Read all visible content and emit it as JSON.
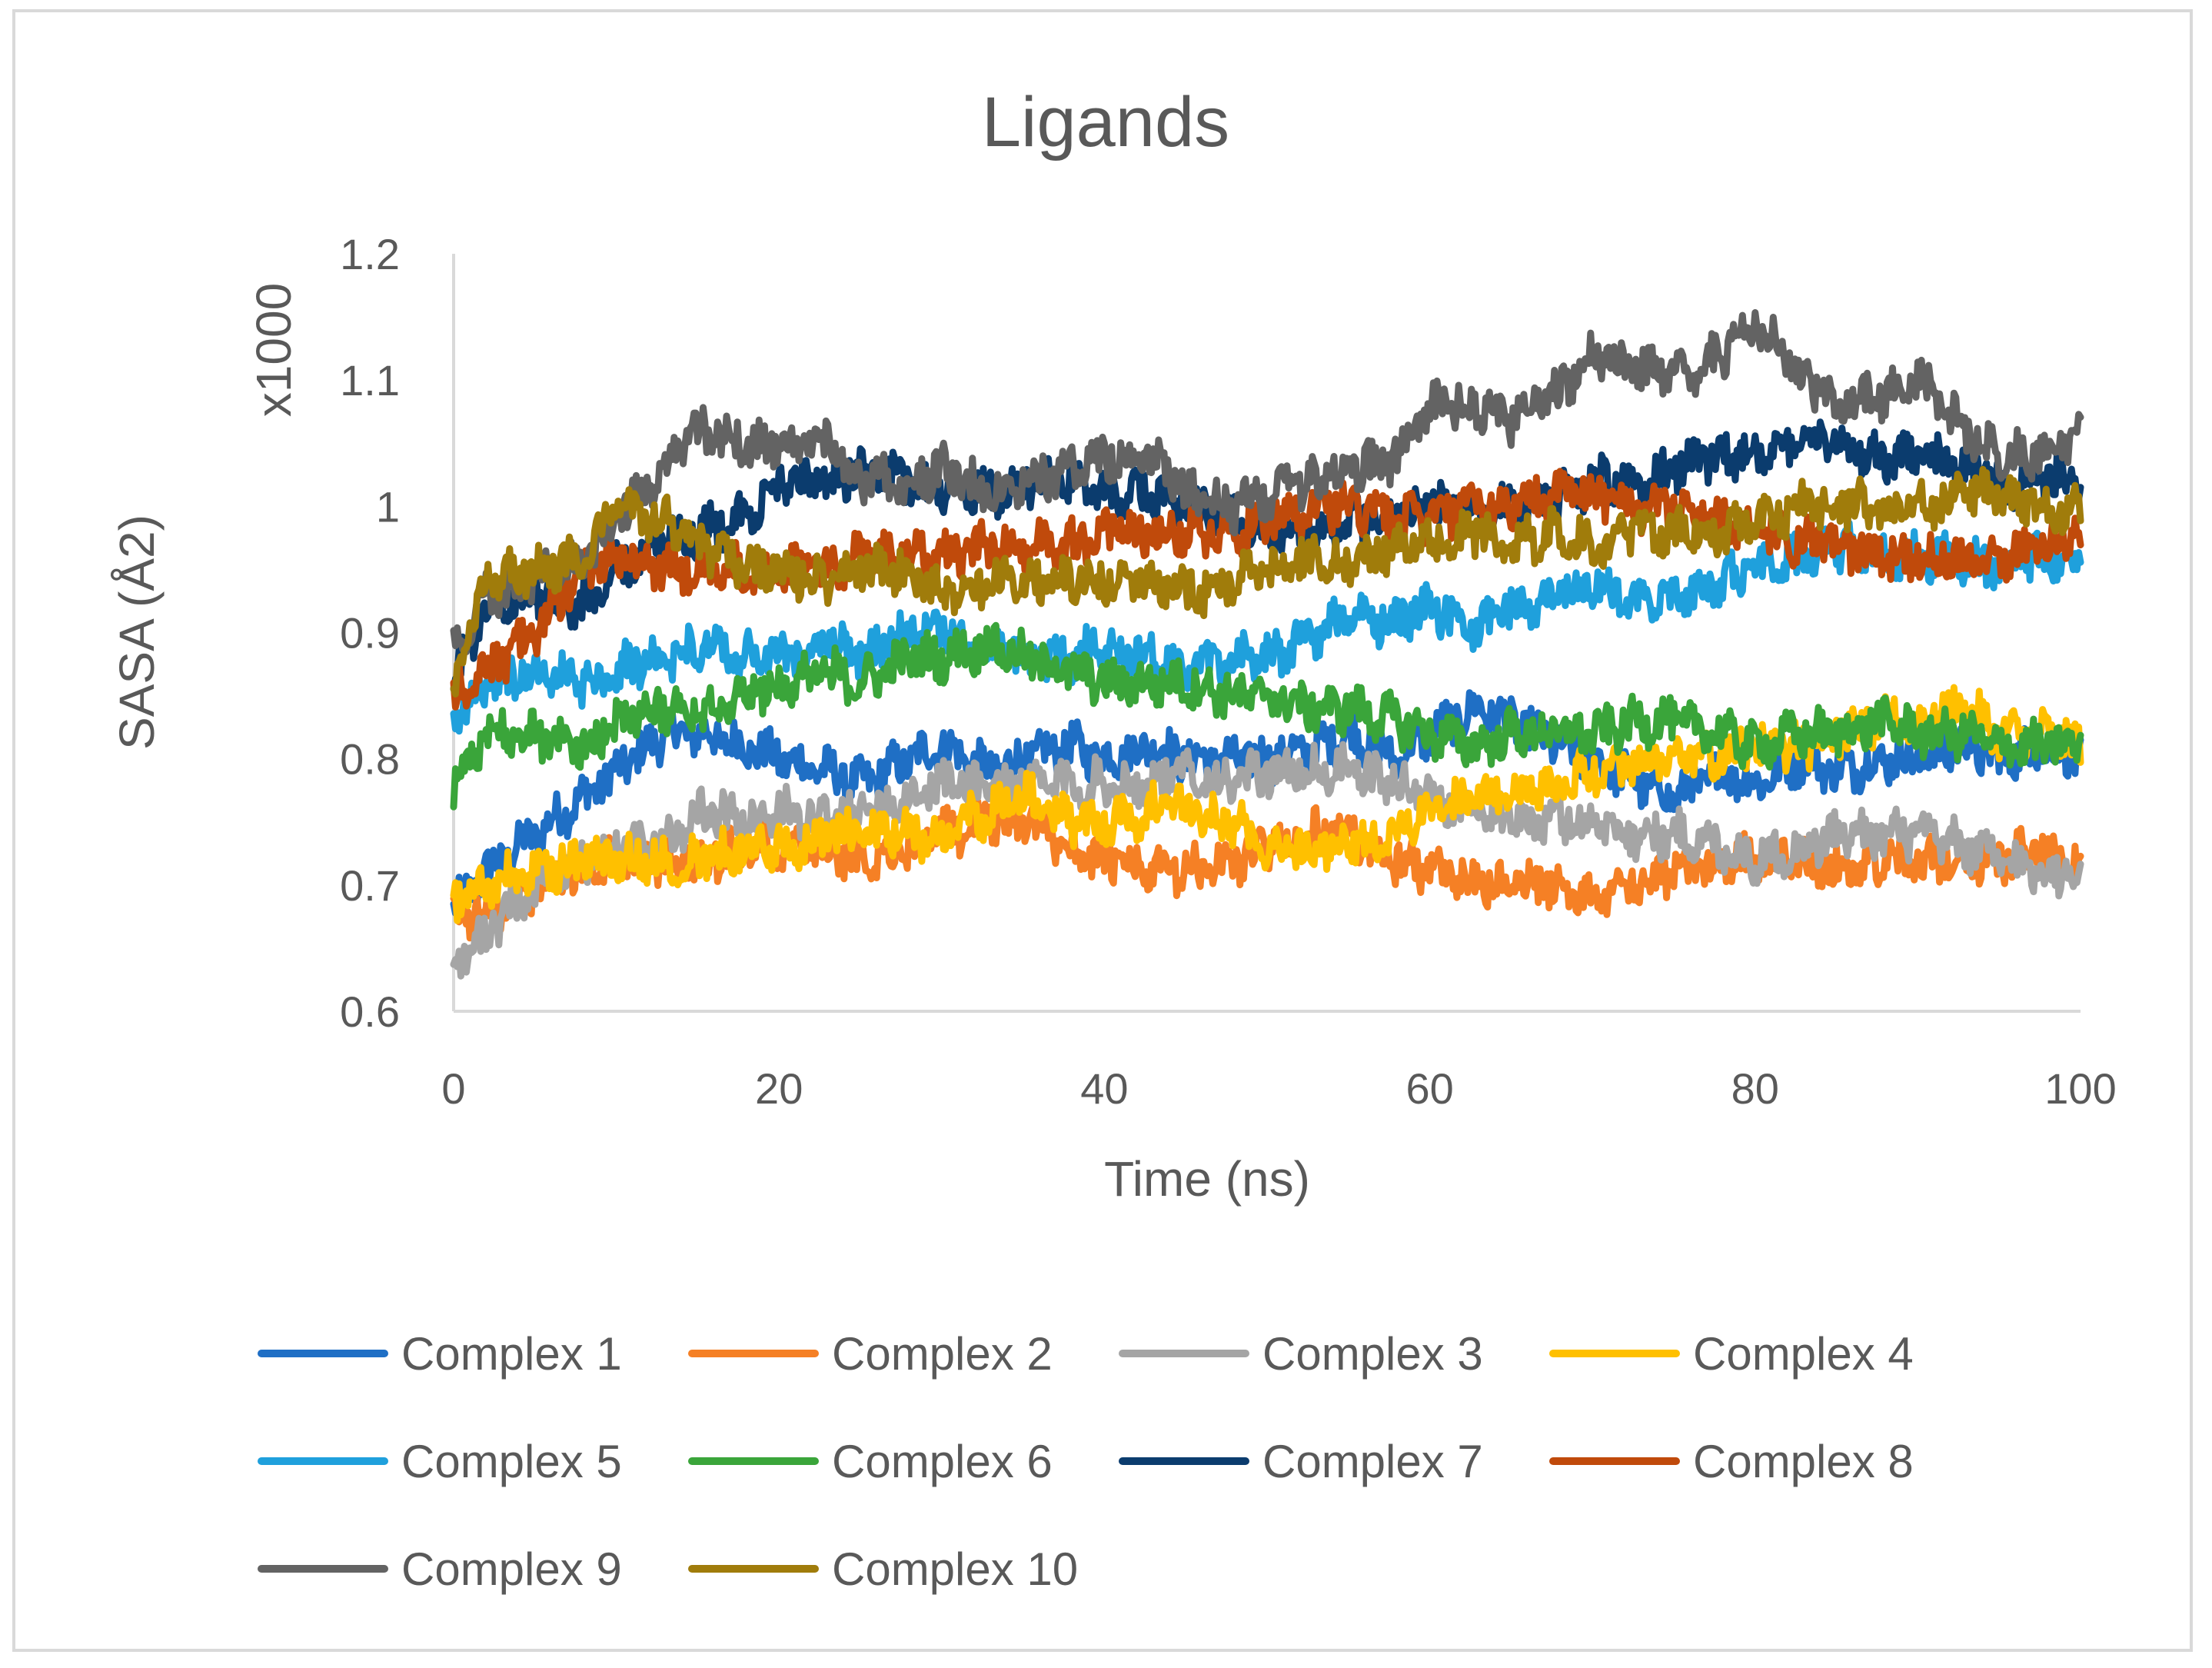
{
  "chart_data": {
    "type": "line",
    "title": "Ligands",
    "xlabel": "Time (ns)",
    "ylabel": "SASA  (Å2)",
    "y_multiplier_label": "x1000",
    "xlim": [
      0,
      100
    ],
    "ylim": [
      0.6,
      1.2
    ],
    "x_ticks": [
      "0",
      "20",
      "40",
      "60",
      "80",
      "100"
    ],
    "y_ticks": [
      "0.6",
      "0.7",
      "0.8",
      "0.9",
      "1",
      "1.1",
      "1.2"
    ],
    "grid": false,
    "legend_position": "bottom",
    "x": [
      0,
      2,
      5,
      8,
      10,
      13,
      15,
      18,
      20,
      23,
      25,
      28,
      30,
      33,
      35,
      38,
      40,
      43,
      45,
      48,
      50,
      53,
      55,
      58,
      60,
      63,
      65,
      68,
      70,
      73,
      75,
      78,
      80,
      83,
      85,
      88,
      90,
      93,
      95,
      98,
      100
    ],
    "series": [
      {
        "name": "Complex 1",
        "color": "#1f6fc5",
        "values": [
          0.68,
          0.71,
          0.74,
          0.77,
          0.79,
          0.82,
          0.82,
          0.81,
          0.8,
          0.79,
          0.78,
          0.8,
          0.81,
          0.79,
          0.8,
          0.81,
          0.8,
          0.81,
          0.8,
          0.8,
          0.8,
          0.81,
          0.82,
          0.8,
          0.82,
          0.84,
          0.83,
          0.81,
          0.8,
          0.78,
          0.77,
          0.79,
          0.78,
          0.8,
          0.79,
          0.8,
          0.8,
          0.81,
          0.8,
          0.81,
          0.8
        ]
      },
      {
        "name": "Complex 2",
        "color": "#f58025",
        "values": [
          0.67,
          0.68,
          0.7,
          0.71,
          0.72,
          0.72,
          0.72,
          0.73,
          0.73,
          0.73,
          0.72,
          0.73,
          0.74,
          0.75,
          0.75,
          0.73,
          0.72,
          0.71,
          0.71,
          0.72,
          0.73,
          0.74,
          0.74,
          0.72,
          0.71,
          0.7,
          0.7,
          0.7,
          0.69,
          0.7,
          0.71,
          0.72,
          0.72,
          0.72,
          0.71,
          0.72,
          0.72,
          0.72,
          0.72,
          0.73,
          0.72
        ]
      },
      {
        "name": "Complex 3",
        "color": "#a5a5a5",
        "values": [
          0.64,
          0.66,
          0.7,
          0.72,
          0.73,
          0.73,
          0.76,
          0.75,
          0.76,
          0.75,
          0.76,
          0.77,
          0.78,
          0.78,
          0.78,
          0.78,
          0.78,
          0.78,
          0.79,
          0.78,
          0.79,
          0.79,
          0.79,
          0.78,
          0.77,
          0.76,
          0.75,
          0.75,
          0.75,
          0.74,
          0.74,
          0.73,
          0.72,
          0.73,
          0.74,
          0.74,
          0.74,
          0.73,
          0.72,
          0.71,
          0.71
        ]
      },
      {
        "name": "Complex 4",
        "color": "#ffc000",
        "values": [
          0.69,
          0.7,
          0.71,
          0.72,
          0.72,
          0.72,
          0.72,
          0.73,
          0.73,
          0.74,
          0.74,
          0.74,
          0.74,
          0.76,
          0.77,
          0.75,
          0.75,
          0.76,
          0.76,
          0.75,
          0.73,
          0.73,
          0.73,
          0.74,
          0.76,
          0.77,
          0.77,
          0.78,
          0.79,
          0.8,
          0.8,
          0.8,
          0.81,
          0.81,
          0.82,
          0.83,
          0.83,
          0.84,
          0.82,
          0.82,
          0.81
        ]
      },
      {
        "name": "Complex 5",
        "color": "#1fa0dc",
        "values": [
          0.83,
          0.86,
          0.87,
          0.86,
          0.87,
          0.88,
          0.89,
          0.88,
          0.88,
          0.89,
          0.88,
          0.9,
          0.9,
          0.89,
          0.88,
          0.88,
          0.89,
          0.88,
          0.87,
          0.88,
          0.88,
          0.9,
          0.91,
          0.91,
          0.92,
          0.9,
          0.92,
          0.93,
          0.94,
          0.92,
          0.93,
          0.94,
          0.95,
          0.96,
          0.97,
          0.96,
          0.96,
          0.96,
          0.95,
          0.96,
          0.96
        ]
      },
      {
        "name": "Complex 6",
        "color": "#3aa53a",
        "values": [
          0.78,
          0.82,
          0.82,
          0.81,
          0.83,
          0.84,
          0.84,
          0.85,
          0.86,
          0.87,
          0.86,
          0.88,
          0.88,
          0.89,
          0.88,
          0.87,
          0.86,
          0.86,
          0.86,
          0.85,
          0.85,
          0.84,
          0.84,
          0.83,
          0.82,
          0.81,
          0.82,
          0.82,
          0.82,
          0.83,
          0.83,
          0.82,
          0.81,
          0.82,
          0.82,
          0.83,
          0.82,
          0.82,
          0.81,
          0.81,
          0.81
        ]
      },
      {
        "name": "Complex 7",
        "color": "#0b3c6e",
        "values": [
          0.86,
          0.92,
          0.93,
          0.92,
          0.95,
          0.97,
          0.98,
          0.99,
          1.02,
          1.02,
          1.03,
          1.02,
          1.01,
          1.01,
          1.02,
          1.02,
          1.01,
          1.01,
          1.0,
          0.99,
          0.98,
          0.98,
          0.99,
          0.99,
          1.0,
          1.0,
          1.0,
          1.01,
          1.02,
          1.02,
          1.03,
          1.04,
          1.04,
          1.05,
          1.05,
          1.04,
          1.04,
          1.03,
          1.02,
          1.02,
          1.02
        ]
      },
      {
        "name": "Complex 8",
        "color": "#c04a0b",
        "values": [
          0.85,
          0.87,
          0.9,
          0.95,
          0.96,
          0.95,
          0.95,
          0.95,
          0.95,
          0.95,
          0.96,
          0.96,
          0.96,
          0.97,
          0.97,
          0.97,
          0.98,
          0.98,
          0.98,
          0.98,
          0.99,
          1.0,
          1.0,
          0.99,
          0.99,
          1.0,
          1.0,
          1.01,
          1.01,
          1.0,
          1.0,
          0.99,
          0.98,
          0.97,
          0.97,
          0.96,
          0.96,
          0.96,
          0.96,
          0.97,
          0.98
        ]
      },
      {
        "name": "Complex 9",
        "color": "#636363",
        "values": [
          0.88,
          0.93,
          0.94,
          0.96,
          0.99,
          1.03,
          1.06,
          1.05,
          1.05,
          1.05,
          1.02,
          1.02,
          1.03,
          1.01,
          1.02,
          1.03,
          1.04,
          1.04,
          1.01,
          1.0,
          1.01,
          1.02,
          1.03,
          1.04,
          1.08,
          1.08,
          1.07,
          1.09,
          1.12,
          1.11,
          1.1,
          1.12,
          1.15,
          1.1,
          1.08,
          1.09,
          1.1,
          1.06,
          1.04,
          1.04,
          1.06
        ]
      },
      {
        "name": "Complex 10",
        "color": "#a07c0b",
        "values": [
          0.86,
          0.94,
          0.95,
          0.96,
          1.0,
          0.99,
          0.97,
          0.95,
          0.95,
          0.94,
          0.95,
          0.95,
          0.93,
          0.94,
          0.94,
          0.94,
          0.94,
          0.94,
          0.93,
          0.94,
          0.95,
          0.96,
          0.95,
          0.97,
          0.97,
          0.98,
          0.97,
          0.98,
          0.97,
          0.98,
          0.98,
          0.98,
          0.99,
          1.0,
          1.0,
          1.0,
          1.0,
          1.01,
          1.01,
          1.0,
          1.0
        ]
      }
    ]
  }
}
